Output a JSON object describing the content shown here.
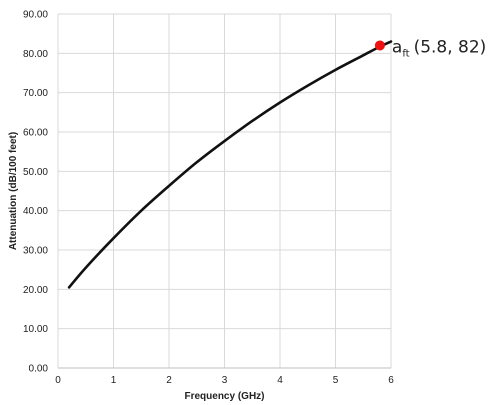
{
  "chart_data": {
    "type": "line",
    "title": "",
    "xlabel": "Frequency (GHz)",
    "ylabel": "Attenuation (dB/100 feet)",
    "xlim": [
      0,
      6
    ],
    "ylim": [
      0,
      90
    ],
    "x_ticks": [
      0,
      1,
      2,
      3,
      4,
      5,
      6
    ],
    "y_ticks": [
      0,
      10,
      20,
      30,
      40,
      50,
      60,
      70,
      80,
      90
    ],
    "y_tick_labels": [
      "0.00",
      "10.00",
      "20.00",
      "30.00",
      "40.00",
      "50.00",
      "60.00",
      "70.00",
      "80.00",
      "90.00"
    ],
    "x_tick_labels": [
      "0",
      "1",
      "2",
      "3",
      "4",
      "5",
      "6"
    ],
    "grid": true,
    "legend": "none",
    "series": [
      {
        "color": "#111111",
        "x": [
          0.2,
          0.5,
          1.0,
          1.5,
          2.0,
          2.5,
          3.0,
          3.5,
          4.0,
          4.5,
          5.0,
          5.5,
          5.8,
          6.0
        ],
        "y": [
          20.5,
          25.5,
          33.0,
          40.0,
          46.3,
          52.3,
          57.7,
          62.8,
          67.5,
          71.8,
          75.8,
          79.5,
          81.7,
          83.0
        ]
      }
    ],
    "highlight_point": {
      "x": 5.8,
      "y": 82,
      "color": "#ee1111",
      "label_main": "a",
      "label_sub": "ft",
      "label_coords": "(5.8, 82)"
    }
  }
}
